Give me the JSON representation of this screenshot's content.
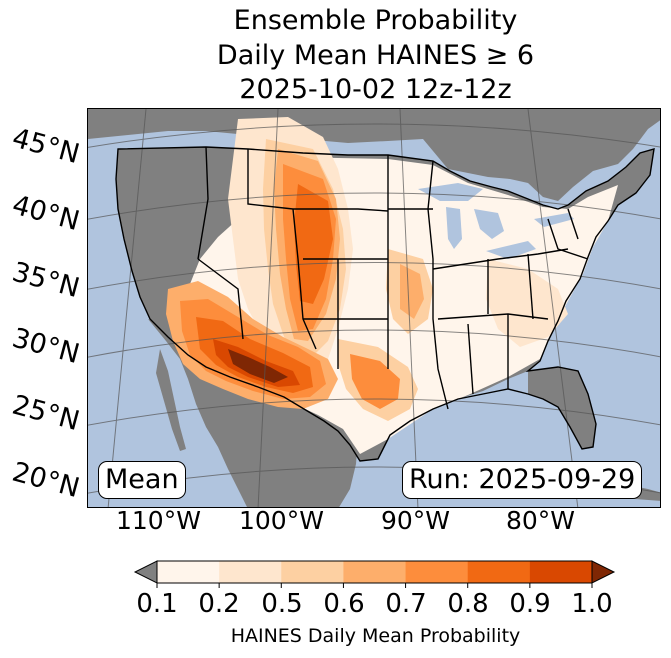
{
  "title": {
    "line1": "Ensemble Probability",
    "line2": "Daily Mean HAINES ≥ 6",
    "line3": "2025-10-02 12z-12z"
  },
  "map": {
    "lat_labels": [
      "45°N",
      "40°N",
      "35°N",
      "30°N",
      "25°N",
      "20°N"
    ],
    "lon_labels": [
      "110°W",
      "100°W",
      "90°W",
      "80°W"
    ],
    "mean_label": "Mean",
    "run_label": "Run: 2025-09-29",
    "colors": {
      "ocean": "#b0c4de",
      "land_below_threshold": "#808080",
      "borders": "#000000"
    }
  },
  "colorbar": {
    "ticks": [
      "0.1",
      "0.2",
      "0.5",
      "0.6",
      "0.7",
      "0.8",
      "0.9",
      "1.0"
    ],
    "label": "HAINES Daily Mean Probability",
    "under_color": "#808080",
    "over_color": "#7f2704",
    "bins": [
      "#fff5eb",
      "#fee6ce",
      "#fdd0a2",
      "#fdae6b",
      "#fd8d3c",
      "#f16913",
      "#d94801"
    ]
  }
}
